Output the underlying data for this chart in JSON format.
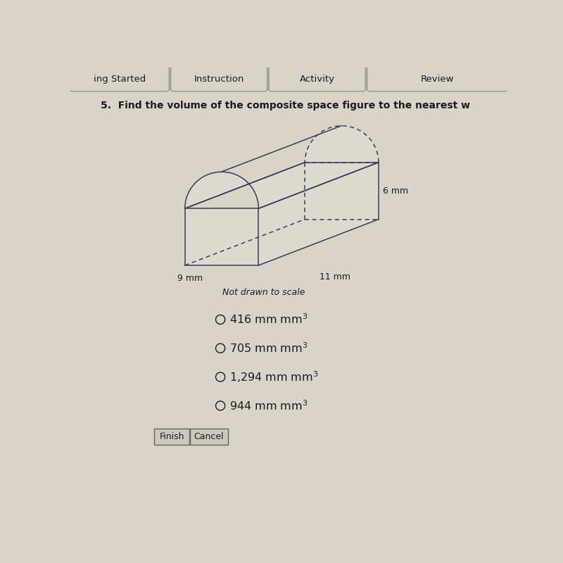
{
  "title": "5.  Find the volume of the composite space figure to the nearest w",
  "bg_color": "#d8d4c8",
  "header_bg": "#c8c4b8",
  "tab_labels": [
    "ing Started",
    "Instruction",
    "Activity",
    "Review"
  ],
  "fig_label_6mm": "6 mm",
  "fig_label_11mm": "11 mm",
  "fig_label_9mm": "9 mm",
  "note": "Not drawn to scale",
  "choices": [
    "416 mm",
    "705 mm",
    "1,294 mm",
    "944 mm"
  ],
  "btn_labels": [
    "Finish",
    "Cancel"
  ],
  "line_color": "#3a3a5a",
  "text_color": "#1a1a2a",
  "face_color": "#ffffff",
  "face_alpha": 0.0
}
